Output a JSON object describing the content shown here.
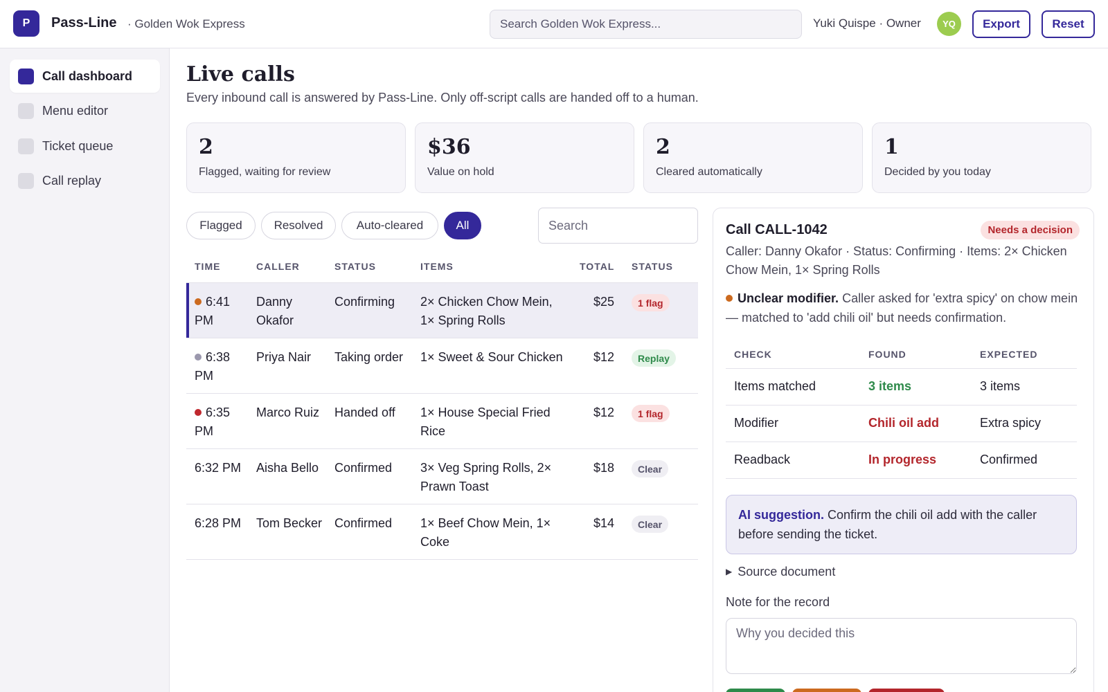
{
  "app": {
    "logo_letter": "P",
    "brand": "Pass-Line",
    "restaurant": "· Golden Wok Express",
    "search_placeholder": "Search Golden Wok Express...",
    "user": "Yuki Quispe · Owner",
    "avatar_initials": "YQ",
    "export_label": "Export",
    "reset_label": "Reset"
  },
  "sidebar": {
    "items": [
      {
        "label": "Call dashboard",
        "active": true
      },
      {
        "label": "Menu editor",
        "active": false
      },
      {
        "label": "Ticket queue",
        "active": false
      },
      {
        "label": "Call replay",
        "active": false
      }
    ]
  },
  "main": {
    "title": "Live calls",
    "subtitle": "Every inbound call is answered by Pass-Line. Only off-script calls are handed off to a human."
  },
  "stats": [
    {
      "value": "2",
      "label": "Flagged, waiting for review"
    },
    {
      "value": "$36",
      "label": "Value on hold"
    },
    {
      "value": "2",
      "label": "Cleared automatically"
    },
    {
      "value": "1",
      "label": "Decided by you today"
    }
  ],
  "filters": {
    "chips": [
      "Flagged",
      "Resolved",
      "Auto-cleared",
      "All"
    ],
    "active": "All",
    "search_placeholder": "Search"
  },
  "table": {
    "headers": [
      "TIME",
      "CALLER",
      "STATUS",
      "ITEMS",
      "TOTAL",
      "STATUS"
    ],
    "rows": [
      {
        "dot_color": "#cc6a1f",
        "time": "6:41 PM",
        "caller": "Danny Okafor",
        "status": "Confirming",
        "items": "2× Chicken Chow Mein, 1× Spring Rolls",
        "total": "$25",
        "badge": "1 flag",
        "badge_type": "flag",
        "selected": true
      },
      {
        "dot_color": "#9b98ad",
        "time": "6:38 PM",
        "caller": "Priya Nair",
        "status": "Taking order",
        "items": "1× Sweet & Sour Chicken",
        "total": "$12",
        "badge": "Replay",
        "badge_type": "replay",
        "selected": false
      },
      {
        "dot_color": "#c0282e",
        "time": "6:35 PM",
        "caller": "Marco Ruiz",
        "status": "Handed off",
        "items": "1× House Special Fried Rice",
        "total": "$12",
        "badge": "1 flag",
        "badge_type": "flag",
        "selected": false
      },
      {
        "dot_color": "",
        "time": "6:32 PM",
        "caller": "Aisha Bello",
        "status": "Confirmed",
        "items": "3× Veg Spring Rolls, 2× Prawn Toast",
        "total": "$18",
        "badge": "Clear",
        "badge_type": "clear",
        "selected": false
      },
      {
        "dot_color": "",
        "time": "6:28 PM",
        "caller": "Tom Becker",
        "status": "Confirmed",
        "items": "1× Beef Chow Mein, 1× Coke",
        "total": "$14",
        "badge": "Clear",
        "badge_type": "clear",
        "selected": false
      }
    ]
  },
  "detail": {
    "title": "Call CALL-1042",
    "badge": "Needs a decision",
    "meta": "Caller: Danny Okafor · Status: Confirming · Items: 2× Chicken Chow Mein, 1× Spring Rolls",
    "flag_title": "Unclear modifier.",
    "flag_text": " Caller asked for 'extra spicy' on chow mein — matched to 'add chili oil' but needs confirmation.",
    "checks": {
      "headers": [
        "CHECK",
        "FOUND",
        "EXPECTED"
      ],
      "rows": [
        {
          "check": "Items matched",
          "found": "3 items",
          "found_color": "#2e8a4a",
          "expected": "3 items"
        },
        {
          "check": "Modifier",
          "found": "Chili oil add",
          "found_color": "#b3262c",
          "expected": "Extra spicy"
        },
        {
          "check": "Readback",
          "found": "In progress",
          "found_color": "#b3262c",
          "expected": "Confirmed"
        }
      ]
    },
    "ai_title": "AI suggestion.",
    "ai_text": " Confirm the chili oil add with the caller before sending the ticket.",
    "source_label": "Source document",
    "note_label": "Note for the record",
    "note_placeholder": "Why you decided this",
    "action_colors": [
      "#2e8a4a",
      "#cc6a1f",
      "#b3262c"
    ]
  },
  "colors": {
    "accent": "#34289a",
    "flag_bg": "#fbe1e1",
    "flag_fg": "#b3262c",
    "replay_bg": "#e3f4e7",
    "replay_fg": "#2e8a4a",
    "clear_bg": "#efeef3",
    "clear_fg": "#55536a"
  }
}
